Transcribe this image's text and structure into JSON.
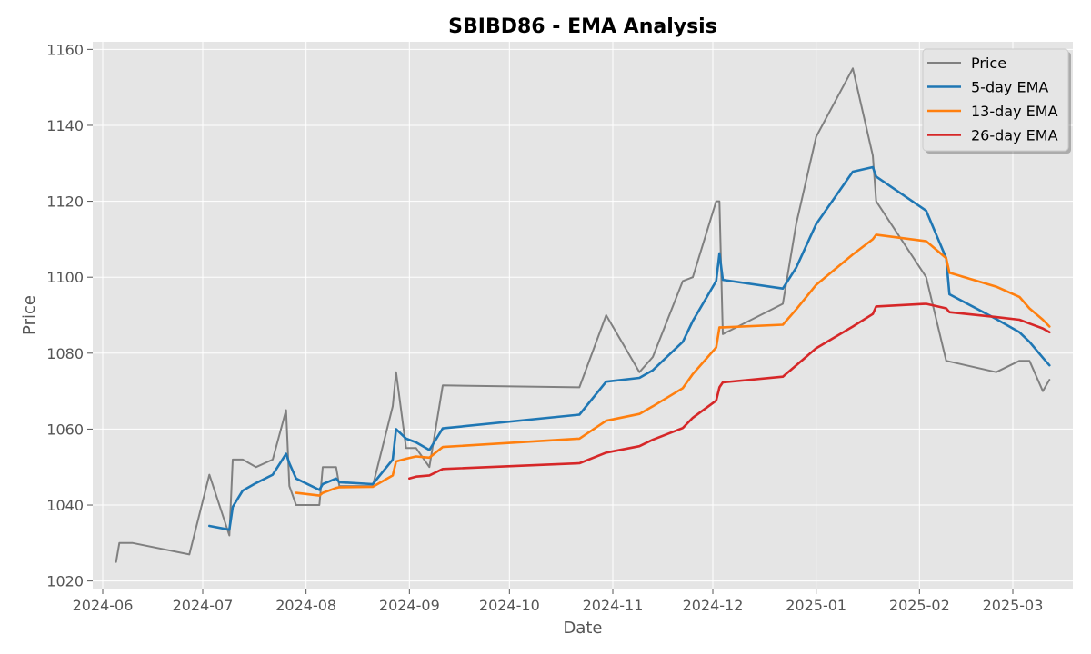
{
  "chart_data": {
    "type": "line",
    "title": "SBIBD86 - EMA Analysis",
    "xlabel": "Date",
    "ylabel": "Price",
    "ylim": [
      1018,
      1162
    ],
    "xlim": [
      "2024-05-29",
      "2025-03-19"
    ],
    "y_ticks": [
      1020,
      1040,
      1060,
      1080,
      1100,
      1120,
      1140,
      1160
    ],
    "x_ticks": [
      "2024-06-01",
      "2024-07-01",
      "2024-08-01",
      "2024-09-01",
      "2024-10-01",
      "2024-11-01",
      "2024-12-01",
      "2025-01-01",
      "2025-02-01",
      "2025-03-01"
    ],
    "x_tick_labels": [
      "2024-06",
      "2024-07",
      "2024-08",
      "2024-09",
      "2024-10",
      "2024-11",
      "2024-12",
      "2025-01",
      "2025-02",
      "2025-03"
    ],
    "grid": true,
    "legend_position": "top-right",
    "series": [
      {
        "name": "Price",
        "color": "#808080",
        "points": [
          [
            "2024-06-05",
            1025
          ],
          [
            "2024-06-06",
            1030
          ],
          [
            "2024-06-10",
            1030
          ],
          [
            "2024-06-27",
            1027
          ],
          [
            "2024-07-03",
            1048
          ],
          [
            "2024-07-09",
            1032
          ],
          [
            "2024-07-10",
            1052
          ],
          [
            "2024-07-13",
            1052
          ],
          [
            "2024-07-17",
            1050
          ],
          [
            "2024-07-22",
            1052
          ],
          [
            "2024-07-26",
            1065
          ],
          [
            "2024-07-27",
            1045
          ],
          [
            "2024-07-29",
            1040
          ],
          [
            "2024-08-05",
            1040
          ],
          [
            "2024-08-06",
            1050
          ],
          [
            "2024-08-10",
            1050
          ],
          [
            "2024-08-11",
            1045
          ],
          [
            "2024-08-21",
            1045
          ],
          [
            "2024-08-27",
            1066
          ],
          [
            "2024-08-28",
            1075
          ],
          [
            "2024-08-31",
            1055
          ],
          [
            "2024-09-03",
            1055
          ],
          [
            "2024-09-07",
            1050
          ],
          [
            "2024-09-11",
            1071.5
          ],
          [
            "2024-10-22",
            1071
          ],
          [
            "2024-10-30",
            1090
          ],
          [
            "2024-11-09",
            1075
          ],
          [
            "2024-11-13",
            1079
          ],
          [
            "2024-11-22",
            1099
          ],
          [
            "2024-11-25",
            1100
          ],
          [
            "2024-12-02",
            1120
          ],
          [
            "2024-12-03",
            1120
          ],
          [
            "2024-12-04",
            1085
          ],
          [
            "2024-12-22",
            1093
          ],
          [
            "2024-12-26",
            1114
          ],
          [
            "2025-01-01",
            1137
          ],
          [
            "2025-01-12",
            1155
          ],
          [
            "2025-01-18",
            1132
          ],
          [
            "2025-01-19",
            1120
          ],
          [
            "2025-02-03",
            1100
          ],
          [
            "2025-02-09",
            1078
          ],
          [
            "2025-02-24",
            1075
          ],
          [
            "2025-03-03",
            1078
          ],
          [
            "2025-03-06",
            1078
          ],
          [
            "2025-03-10",
            1070
          ],
          [
            "2025-03-12",
            1073
          ]
        ]
      },
      {
        "name": "5-day EMA",
        "color": "#1f77b4",
        "points": [
          [
            "2024-07-03",
            1034.5
          ],
          [
            "2024-07-09",
            1033.5
          ],
          [
            "2024-07-10",
            1039.5
          ],
          [
            "2024-07-13",
            1043.8
          ],
          [
            "2024-07-17",
            1045.8
          ],
          [
            "2024-07-22",
            1048
          ],
          [
            "2024-07-26",
            1053.5
          ],
          [
            "2024-07-27",
            1051
          ],
          [
            "2024-07-29",
            1047
          ],
          [
            "2024-08-05",
            1044
          ],
          [
            "2024-08-06",
            1045.5
          ],
          [
            "2024-08-10",
            1047
          ],
          [
            "2024-08-11",
            1046
          ],
          [
            "2024-08-21",
            1045.5
          ],
          [
            "2024-08-27",
            1052
          ],
          [
            "2024-08-28",
            1060
          ],
          [
            "2024-08-31",
            1057.5
          ],
          [
            "2024-09-03",
            1056.5
          ],
          [
            "2024-09-07",
            1054.5
          ],
          [
            "2024-09-11",
            1060.2
          ],
          [
            "2024-10-22",
            1063.8
          ],
          [
            "2024-10-30",
            1072.5
          ],
          [
            "2024-11-09",
            1073.5
          ],
          [
            "2024-11-13",
            1075.5
          ],
          [
            "2024-11-22",
            1083
          ],
          [
            "2024-11-25",
            1088.5
          ],
          [
            "2024-12-02",
            1099
          ],
          [
            "2024-12-03",
            1106.3
          ],
          [
            "2024-12-04",
            1099.3
          ],
          [
            "2024-12-22",
            1097
          ],
          [
            "2024-12-26",
            1102.5
          ],
          [
            "2025-01-01",
            1114
          ],
          [
            "2025-01-12",
            1127.8
          ],
          [
            "2025-01-18",
            1129
          ],
          [
            "2025-01-19",
            1126.5
          ],
          [
            "2025-02-03",
            1117.5
          ],
          [
            "2025-02-09",
            1105
          ],
          [
            "2025-02-10",
            1095.5
          ],
          [
            "2025-02-24",
            1089
          ],
          [
            "2025-03-03",
            1085.5
          ],
          [
            "2025-03-06",
            1083
          ],
          [
            "2025-03-10",
            1078.8
          ],
          [
            "2025-03-12",
            1076.8
          ]
        ]
      },
      {
        "name": "13-day EMA",
        "color": "#ff7f0e",
        "points": [
          [
            "2024-07-29",
            1043.2
          ],
          [
            "2024-08-05",
            1042.5
          ],
          [
            "2024-08-06",
            1043.2
          ],
          [
            "2024-08-10",
            1044.5
          ],
          [
            "2024-08-11",
            1044.7
          ],
          [
            "2024-08-21",
            1044.8
          ],
          [
            "2024-08-27",
            1047.8
          ],
          [
            "2024-08-28",
            1051.5
          ],
          [
            "2024-08-31",
            1052.2
          ],
          [
            "2024-09-03",
            1052.8
          ],
          [
            "2024-09-07",
            1052.5
          ],
          [
            "2024-09-11",
            1055.3
          ],
          [
            "2024-10-22",
            1057.5
          ],
          [
            "2024-10-30",
            1062.2
          ],
          [
            "2024-11-09",
            1064
          ],
          [
            "2024-11-13",
            1066
          ],
          [
            "2024-11-22",
            1070.8
          ],
          [
            "2024-11-25",
            1074.5
          ],
          [
            "2024-12-02",
            1081.5
          ],
          [
            "2024-12-03",
            1086.8
          ],
          [
            "2024-12-04",
            1086.8
          ],
          [
            "2024-12-22",
            1087.5
          ],
          [
            "2024-12-26",
            1091.5
          ],
          [
            "2025-01-01",
            1098
          ],
          [
            "2025-01-12",
            1106
          ],
          [
            "2025-01-18",
            1110
          ],
          [
            "2025-01-19",
            1111.2
          ],
          [
            "2025-02-03",
            1109.5
          ],
          [
            "2025-02-09",
            1105
          ],
          [
            "2025-02-10",
            1101.2
          ],
          [
            "2025-02-24",
            1097.5
          ],
          [
            "2025-03-03",
            1094.8
          ],
          [
            "2025-03-06",
            1091.8
          ],
          [
            "2025-03-10",
            1088.8
          ],
          [
            "2025-03-12",
            1087
          ]
        ]
      },
      {
        "name": "26-day EMA",
        "color": "#d62728",
        "points": [
          [
            "2024-09-01",
            1047
          ],
          [
            "2024-09-03",
            1047.5
          ],
          [
            "2024-09-07",
            1047.8
          ],
          [
            "2024-09-11",
            1049.5
          ],
          [
            "2024-10-22",
            1051
          ],
          [
            "2024-10-30",
            1053.8
          ],
          [
            "2024-11-09",
            1055.5
          ],
          [
            "2024-11-13",
            1057.2
          ],
          [
            "2024-11-22",
            1060.3
          ],
          [
            "2024-11-25",
            1063
          ],
          [
            "2024-12-02",
            1067.5
          ],
          [
            "2024-12-03",
            1071
          ],
          [
            "2024-12-04",
            1072.3
          ],
          [
            "2024-12-22",
            1073.8
          ],
          [
            "2024-12-26",
            1076.8
          ],
          [
            "2025-01-01",
            1081.3
          ],
          [
            "2025-01-12",
            1087
          ],
          [
            "2025-01-18",
            1090.3
          ],
          [
            "2025-01-19",
            1092.3
          ],
          [
            "2025-02-03",
            1093
          ],
          [
            "2025-02-09",
            1091.8
          ],
          [
            "2025-02-10",
            1090.8
          ],
          [
            "2025-02-24",
            1089.5
          ],
          [
            "2025-03-03",
            1088.8
          ],
          [
            "2025-03-06",
            1087.8
          ],
          [
            "2025-03-10",
            1086.5
          ],
          [
            "2025-03-12",
            1085.5
          ]
        ]
      }
    ]
  }
}
